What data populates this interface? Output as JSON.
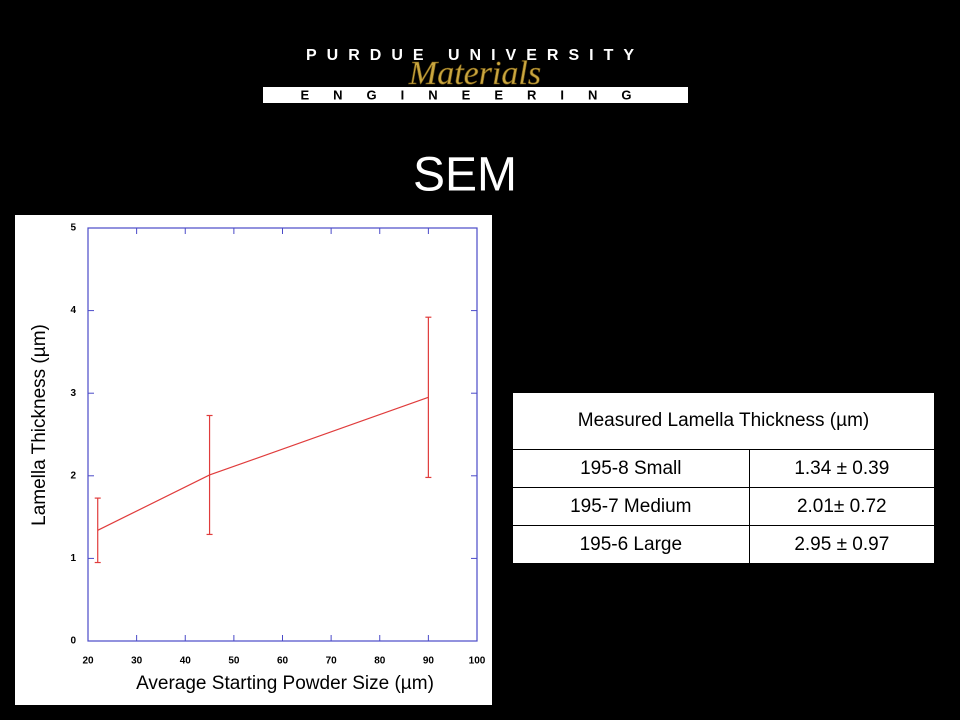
{
  "header": {
    "university": "PURDUE UNIVERSITY",
    "department": "Materials",
    "school": "ENGINEERING"
  },
  "slide_title": "SEM",
  "chart_data": {
    "type": "line",
    "x_label": "Average Starting Powder Size (µm)",
    "y_label": "Lamella Thickness (µm)",
    "x": [
      22,
      45,
      90
    ],
    "values": [
      1.34,
      2.01,
      2.95
    ],
    "errors": [
      0.39,
      0.72,
      0.97
    ],
    "color": "#e03c3c",
    "xlim": [
      20,
      100
    ],
    "xticks": [
      20,
      30,
      40,
      50,
      60,
      70,
      80,
      90,
      100
    ],
    "ylim": [
      0,
      5
    ],
    "yticks": [
      0,
      1,
      2,
      3,
      4,
      5
    ]
  },
  "table": {
    "header": "Measured Lamella Thickness (µm)",
    "rows": [
      [
        "195-8 Small",
        "1.34 ± 0.39"
      ],
      [
        "195-7 Medium",
        "2.01± 0.72"
      ],
      [
        "195-6 Large",
        "2.95 ± 0.97"
      ]
    ]
  }
}
